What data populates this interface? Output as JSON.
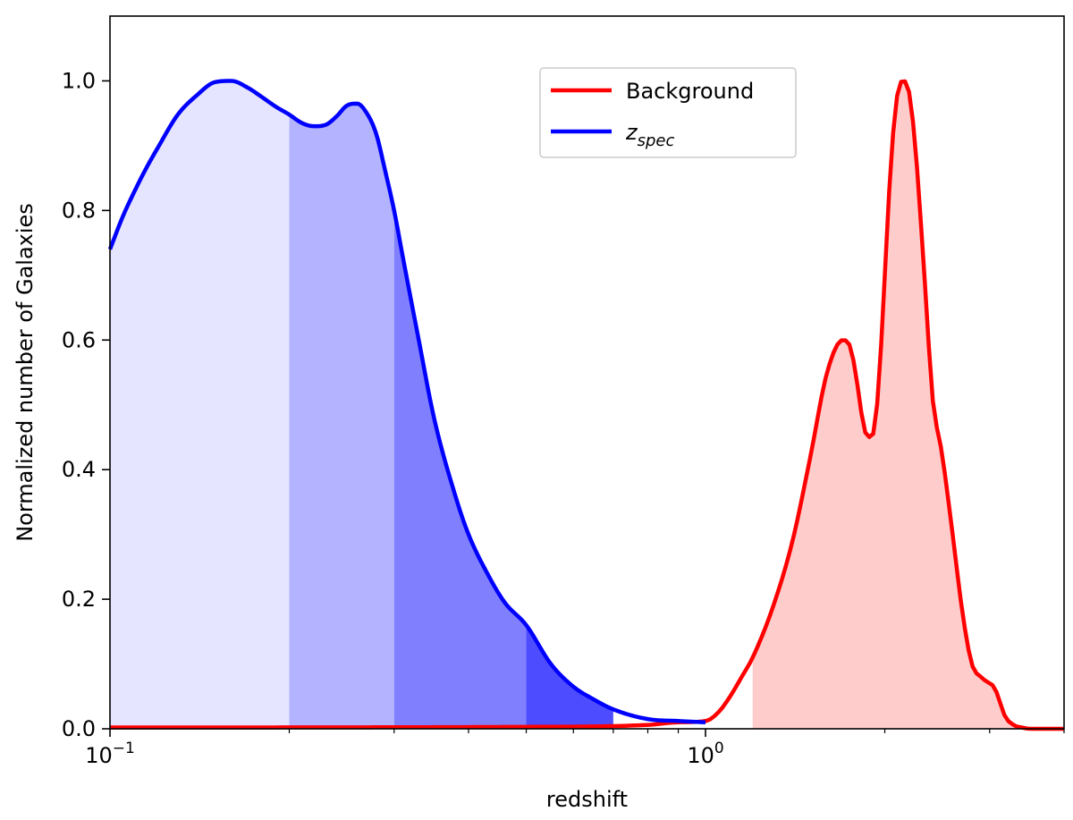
{
  "chart_data": {
    "type": "area",
    "xlabel": "redshift",
    "ylabel": "Normalized number of Galaxies",
    "xscale": "log",
    "xlim": [
      0.1,
      4.0
    ],
    "ylim": [
      0.0,
      1.1
    ],
    "x_major_ticks": [
      {
        "value": 0.1,
        "base": "10",
        "exp": "−1"
      },
      {
        "value": 1.0,
        "base": "10",
        "exp": "0"
      }
    ],
    "x_minor_ticks": [
      0.2,
      0.3,
      0.4,
      0.5,
      0.6,
      0.7,
      0.8,
      0.9,
      2,
      3,
      4
    ],
    "y_ticks": [
      "0.0",
      "0.2",
      "0.4",
      "0.6",
      "0.8",
      "1.0"
    ],
    "grid": false,
    "legend": {
      "placement": "top-center",
      "entries": [
        {
          "label": "Background",
          "sub": "",
          "color": "#ff0000"
        },
        {
          "label": "z",
          "sub": "spec",
          "color": "#0000ff"
        }
      ]
    },
    "series": [
      {
        "name": "Background",
        "color": "#ff0000",
        "fill_color": "#ffcccc",
        "fill_from_x": 1.2,
        "x": [
          0.1,
          0.5,
          0.8,
          0.9,
          1.0,
          1.05,
          1.1,
          1.15,
          1.2,
          1.3,
          1.4,
          1.5,
          1.6,
          1.7,
          1.75,
          1.8,
          1.85,
          1.9,
          1.95,
          2.0,
          2.05,
          2.1,
          2.15,
          2.2,
          2.25,
          2.3,
          2.35,
          2.4,
          2.5,
          2.6,
          2.7,
          2.8,
          2.9,
          3.0,
          3.05,
          3.1,
          3.15,
          3.2,
          3.25,
          3.3,
          3.4,
          3.5,
          4.0
        ],
        "y": [
          0.002,
          0.003,
          0.006,
          0.01,
          0.012,
          0.025,
          0.05,
          0.08,
          0.11,
          0.19,
          0.29,
          0.42,
          0.55,
          0.6,
          0.59,
          0.53,
          0.46,
          0.45,
          0.52,
          0.7,
          0.88,
          0.98,
          1.0,
          0.98,
          0.9,
          0.78,
          0.65,
          0.52,
          0.42,
          0.3,
          0.18,
          0.1,
          0.08,
          0.07,
          0.065,
          0.05,
          0.03,
          0.015,
          0.01,
          0.005,
          0.002,
          0.0,
          0.0
        ]
      },
      {
        "name": "z spec",
        "color": "#0000ff",
        "x": [
          0.1,
          0.105,
          0.11,
          0.115,
          0.12,
          0.13,
          0.14,
          0.15,
          0.16,
          0.17,
          0.18,
          0.19,
          0.2,
          0.21,
          0.22,
          0.23,
          0.24,
          0.25,
          0.26,
          0.27,
          0.28,
          0.29,
          0.3,
          0.31,
          0.33,
          0.35,
          0.38,
          0.4,
          0.43,
          0.46,
          0.5,
          0.55,
          0.6,
          0.65,
          0.7,
          0.8,
          0.9,
          1.0
        ],
        "y": [
          0.74,
          0.79,
          0.83,
          0.865,
          0.895,
          0.948,
          0.978,
          0.998,
          1.0,
          0.99,
          0.975,
          0.96,
          0.948,
          0.935,
          0.93,
          0.932,
          0.945,
          0.962,
          0.965,
          0.95,
          0.918,
          0.86,
          0.8,
          0.73,
          0.6,
          0.48,
          0.36,
          0.3,
          0.24,
          0.195,
          0.16,
          0.1,
          0.065,
          0.045,
          0.03,
          0.015,
          0.012,
          0.01
        ],
        "fill_bands": [
          {
            "from": 0.1,
            "to": 0.2,
            "color": "#e5e5ff"
          },
          {
            "from": 0.2,
            "to": 0.3,
            "color": "#b3b3ff"
          },
          {
            "from": 0.3,
            "to": 0.5,
            "color": "#8080ff"
          },
          {
            "from": 0.5,
            "to": 0.7,
            "color": "#4d4dff"
          }
        ]
      }
    ]
  }
}
